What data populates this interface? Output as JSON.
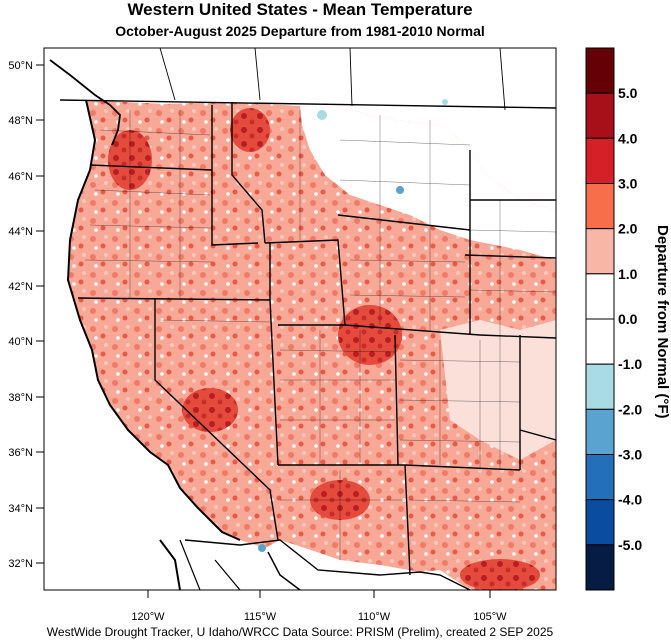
{
  "title": "Western United States - Mean Temperature",
  "subtitle": "October-August 2025  Departure from 1981-2010 Normal",
  "footer": "WestWide Drought Tracker, U Idaho/WRCC Data Source: PRISM (Prelim), created  2 SEP 2025",
  "map": {
    "lat_labels": [
      "50°N",
      "48°N",
      "46°N",
      "44°N",
      "42°N",
      "40°N",
      "38°N",
      "36°N",
      "34°N",
      "32°N"
    ],
    "lon_labels": [
      "120°W",
      "115°W",
      "110°W",
      "105°W"
    ],
    "dominant_color": "#f8a897",
    "ocean_color": "#ffffff"
  },
  "colorbar": {
    "title": "Departure from Normal (°F)",
    "labels": [
      "5.0",
      "4.0",
      "3.0",
      "2.0",
      "1.0",
      "0.0",
      "-1.0",
      "-2.0",
      "-3.0",
      "-4.0",
      "-5.0"
    ],
    "colors": [
      "#650007",
      "#a70f19",
      "#d52028",
      "#f76e4b",
      "#f8b6a6",
      "#ffffff",
      "#ffffff",
      "#a8dbe4",
      "#5aa3d1",
      "#2470b8",
      "#0a4d9e",
      "#071c45"
    ]
  }
}
